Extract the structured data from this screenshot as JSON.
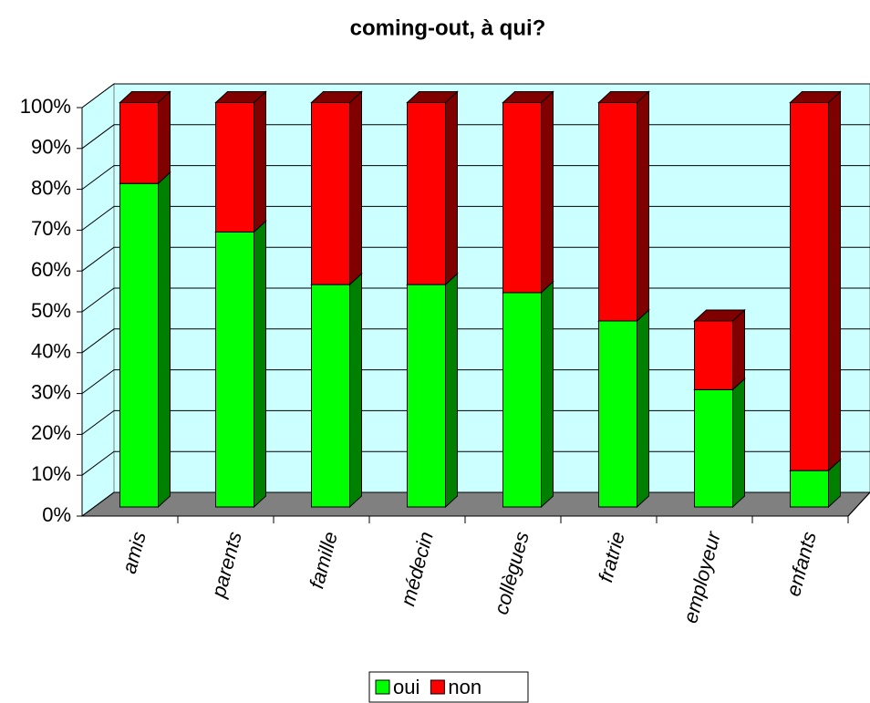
{
  "chart_data": {
    "type": "bar",
    "stacked": true,
    "title": "coming-out, à qui?",
    "categories": [
      "amis",
      "parents",
      "famille",
      "médecin",
      "collègues",
      "fratrie",
      "employeur",
      "enfants"
    ],
    "series": [
      {
        "name": "oui",
        "color": "#00ff00",
        "values": [
          80,
          68,
          55,
          55,
          53,
          46,
          29,
          9
        ]
      },
      {
        "name": "non",
        "color": "#ff0000",
        "values": [
          20,
          32,
          45,
          45,
          47,
          54,
          17,
          91
        ]
      }
    ],
    "ylim": [
      0,
      100
    ],
    "yticks": [
      {
        "value": 0,
        "label": "0%"
      },
      {
        "value": 10,
        "label": "10%"
      },
      {
        "value": 20,
        "label": "20%"
      },
      {
        "value": 30,
        "label": "30%"
      },
      {
        "value": 40,
        "label": "40%"
      },
      {
        "value": 50,
        "label": "50%"
      },
      {
        "value": 60,
        "label": "60%"
      },
      {
        "value": 70,
        "label": "70%"
      },
      {
        "value": 80,
        "label": "80%"
      },
      {
        "value": 90,
        "label": "90%"
      },
      {
        "value": 100,
        "label": "100%"
      }
    ],
    "grid": true,
    "legend": "bottom"
  }
}
